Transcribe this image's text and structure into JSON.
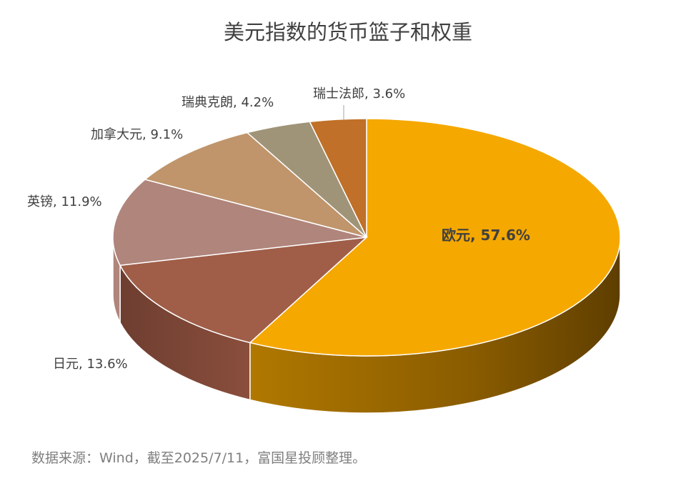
{
  "chart_data": {
    "type": "pie",
    "title": "美元指数的货币篮子和权重",
    "slices": [
      {
        "label": "欧元",
        "value": 57.6,
        "display": "欧元, 57.6%",
        "color": "#F5A800"
      },
      {
        "label": "日元",
        "value": 13.6,
        "display": "日元, 13.6%",
        "color": "#A05E48"
      },
      {
        "label": "英镑",
        "value": 11.9,
        "display": "英镑, 11.9%",
        "color": "#B0857C"
      },
      {
        "label": "加拿大元",
        "value": 9.1,
        "display": "加拿大元, 9.1%",
        "color": "#C0956C"
      },
      {
        "label": "瑞典克朗",
        "value": 4.2,
        "display": "瑞典克朗, 4.2%",
        "color": "#A09478"
      },
      {
        "label": "瑞士法郎",
        "value": 3.6,
        "display": "瑞士法郎, 3.6%",
        "color": "#C07028"
      }
    ],
    "legend": "none",
    "style": "3d"
  },
  "source": "数据来源：Wind，截至2025/7/11，富国星投顾整理。"
}
